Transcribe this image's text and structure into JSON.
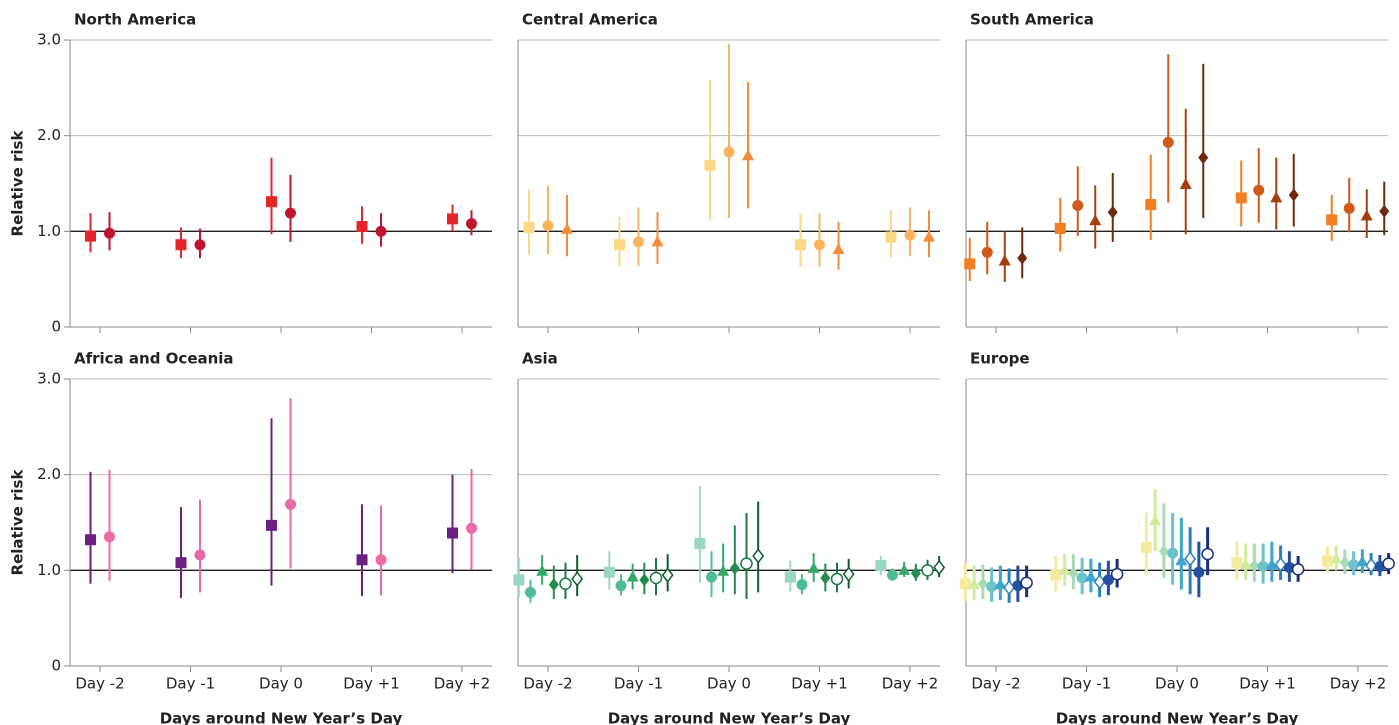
{
  "chart_data": [
    {
      "type": "errorpoint",
      "title": "North America",
      "ylabel": "Relative risk",
      "categories": [
        "Day -2",
        "Day -1",
        "Day 0",
        "Day +1",
        "Day +2"
      ],
      "xtick_labels": false,
      "ytick_labels": true,
      "ylim": [
        0,
        3
      ],
      "yticks": [
        0,
        {
          "value": 1,
          "label": "1.0"
        },
        {
          "value": 2,
          "label": "2.0"
        },
        {
          "value": 3,
          "label": "3.0"
        }
      ],
      "grid": true,
      "reference_line": 1,
      "series": [
        {
          "color": "#e4252b",
          "marker": "square",
          "values": [
            0.95,
            0.86,
            1.31,
            1.05,
            1.13
          ],
          "lower": [
            0.78,
            0.72,
            0.97,
            0.87,
            1.0
          ],
          "upper": [
            1.19,
            1.04,
            1.77,
            1.26,
            1.28
          ]
        },
        {
          "color": "#bf1530",
          "marker": "circle",
          "values": [
            0.98,
            0.86,
            1.19,
            1.0,
            1.08
          ],
          "lower": [
            0.8,
            0.72,
            0.89,
            0.84,
            0.96
          ],
          "upper": [
            1.2,
            1.03,
            1.59,
            1.19,
            1.22
          ]
        }
      ]
    },
    {
      "type": "errorpoint",
      "title": "Central America",
      "categories": [
        "Day -2",
        "Day -1",
        "Day 0",
        "Day +1",
        "Day +2"
      ],
      "xtick_labels": false,
      "ytick_labels": false,
      "ylim": [
        0,
        3
      ],
      "yticks": [
        0,
        {
          "value": 1,
          "label": "1.0"
        },
        {
          "value": 2,
          "label": "2.0"
        },
        {
          "value": 3,
          "label": "3.0"
        }
      ],
      "grid": true,
      "reference_line": 1,
      "series": [
        {
          "color": "#fdd886",
          "marker": "square",
          "values": [
            1.04,
            0.86,
            1.69,
            0.86,
            0.94
          ],
          "lower": [
            0.75,
            0.64,
            1.12,
            0.63,
            0.73
          ],
          "upper": [
            1.44,
            1.15,
            2.58,
            1.18,
            1.22
          ]
        },
        {
          "color": "#fbb45e",
          "marker": "circle",
          "values": [
            1.06,
            0.89,
            1.83,
            0.86,
            0.96
          ],
          "lower": [
            0.76,
            0.64,
            1.14,
            0.63,
            0.74
          ],
          "upper": [
            1.48,
            1.25,
            2.96,
            1.19,
            1.25
          ]
        },
        {
          "color": "#f38d3b",
          "marker": "triangle",
          "values": [
            1.02,
            0.89,
            1.79,
            0.81,
            0.94
          ],
          "lower": [
            0.74,
            0.66,
            1.24,
            0.6,
            0.73
          ],
          "upper": [
            1.38,
            1.2,
            2.56,
            1.1,
            1.22
          ]
        }
      ]
    },
    {
      "type": "errorpoint",
      "title": "South America",
      "categories": [
        "Day -2",
        "Day -1",
        "Day 0",
        "Day +1",
        "Day +2"
      ],
      "xtick_labels": false,
      "ytick_labels": false,
      "ylim": [
        0,
        3
      ],
      "yticks": [
        0,
        {
          "value": 1,
          "label": "1.0"
        },
        {
          "value": 2,
          "label": "2.0"
        },
        {
          "value": 3,
          "label": "3.0"
        }
      ],
      "grid": true,
      "reference_line": 1,
      "series": [
        {
          "color": "#f07f24",
          "marker": "square",
          "values": [
            0.66,
            1.03,
            1.28,
            1.35,
            1.12
          ],
          "lower": [
            0.48,
            0.79,
            0.91,
            1.05,
            0.9
          ],
          "upper": [
            0.93,
            1.35,
            1.8,
            1.74,
            1.38
          ]
        },
        {
          "color": "#cf5a19",
          "marker": "circle",
          "values": [
            0.78,
            1.27,
            1.93,
            1.43,
            1.24
          ],
          "lower": [
            0.55,
            0.95,
            1.3,
            1.09,
            0.99
          ],
          "upper": [
            1.1,
            1.68,
            2.85,
            1.87,
            1.56
          ]
        },
        {
          "color": "#a4400f",
          "marker": "triangle",
          "values": [
            0.69,
            1.11,
            1.49,
            1.35,
            1.16
          ],
          "lower": [
            0.47,
            0.82,
            0.97,
            1.02,
            0.93
          ],
          "upper": [
            1.0,
            1.48,
            2.28,
            1.77,
            1.44
          ]
        },
        {
          "color": "#6e2a0c",
          "marker": "diamond",
          "values": [
            0.72,
            1.2,
            1.77,
            1.38,
            1.21
          ],
          "lower": [
            0.51,
            0.89,
            1.14,
            1.05,
            0.96
          ],
          "upper": [
            1.04,
            1.61,
            2.75,
            1.81,
            1.52
          ]
        }
      ]
    },
    {
      "type": "errorpoint",
      "title": "Africa and Oceania",
      "ylabel": "Relative risk",
      "xlabel": "Days around New Year’s Day",
      "categories": [
        "Day -2",
        "Day -1",
        "Day 0",
        "Day +1",
        "Day +2"
      ],
      "xtick_labels": true,
      "ytick_labels": true,
      "ylim": [
        0,
        3
      ],
      "yticks": [
        0,
        {
          "value": 1,
          "label": "1.0"
        },
        {
          "value": 2,
          "label": "2.0"
        },
        {
          "value": 3,
          "label": "3.0"
        }
      ],
      "grid": true,
      "reference_line": 1,
      "series": [
        {
          "color": "#6a2180",
          "marker": "square",
          "values": [
            1.32,
            1.08,
            1.47,
            1.11,
            1.39
          ],
          "lower": [
            0.86,
            0.71,
            0.84,
            0.73,
            0.97
          ],
          "upper": [
            2.03,
            1.66,
            2.59,
            1.69,
            2.0
          ]
        },
        {
          "color": "#e86aa6",
          "marker": "circle",
          "values": [
            1.35,
            1.16,
            1.69,
            1.11,
            1.44
          ],
          "lower": [
            0.89,
            0.77,
            1.02,
            0.74,
            1.01
          ],
          "upper": [
            2.05,
            1.74,
            2.8,
            1.68,
            2.06
          ]
        }
      ]
    },
    {
      "type": "errorpoint",
      "title": "Asia",
      "xlabel": "Days around New Year’s Day",
      "categories": [
        "Day -2",
        "Day -1",
        "Day 0",
        "Day +1",
        "Day +2"
      ],
      "xtick_labels": true,
      "ytick_labels": false,
      "ylim": [
        0,
        3
      ],
      "yticks": [
        0,
        {
          "value": 1,
          "label": "1.0"
        },
        {
          "value": 2,
          "label": "2.0"
        },
        {
          "value": 3,
          "label": "3.0"
        }
      ],
      "grid": true,
      "reference_line": 1,
      "series": [
        {
          "color": "#9ad6c6",
          "marker": "square",
          "values": [
            0.9,
            0.98,
            1.28,
            0.93,
            1.05
          ],
          "lower": [
            0.72,
            0.8,
            0.87,
            0.78,
            0.95
          ],
          "upper": [
            1.13,
            1.2,
            1.88,
            1.1,
            1.15
          ]
        },
        {
          "color": "#4dbd93",
          "marker": "circle",
          "values": [
            0.77,
            0.84,
            0.93,
            0.85,
            0.95
          ],
          "lower": [
            0.66,
            0.74,
            0.72,
            0.75,
            0.89
          ],
          "upper": [
            0.9,
            0.96,
            1.2,
            0.96,
            1.02
          ]
        },
        {
          "color": "#36a86a",
          "marker": "triangle",
          "values": [
            0.99,
            0.93,
            0.99,
            1.02,
            1.0
          ],
          "lower": [
            0.85,
            0.8,
            0.77,
            0.88,
            0.93
          ],
          "upper": [
            1.16,
            1.07,
            1.28,
            1.18,
            1.09
          ]
        },
        {
          "color": "#238b4e",
          "marker": "diamond",
          "values": [
            0.85,
            0.9,
            1.02,
            0.92,
            0.97
          ],
          "lower": [
            0.7,
            0.75,
            0.75,
            0.78,
            0.89
          ],
          "upper": [
            1.05,
            1.08,
            1.47,
            1.07,
            1.07
          ]
        },
        {
          "color": "#1e7a43",
          "marker": "open-circle",
          "values": [
            0.86,
            0.92,
            1.07,
            0.91,
            1.0
          ],
          "lower": [
            0.7,
            0.74,
            0.7,
            0.77,
            0.9
          ],
          "upper": [
            1.08,
            1.13,
            1.6,
            1.08,
            1.11
          ]
        },
        {
          "color": "#0f5c30",
          "marker": "open-diamond",
          "values": [
            0.91,
            0.95,
            1.15,
            0.96,
            1.03
          ],
          "lower": [
            0.73,
            0.78,
            0.77,
            0.81,
            0.93
          ],
          "upper": [
            1.16,
            1.17,
            1.72,
            1.12,
            1.15
          ]
        }
      ]
    },
    {
      "type": "errorpoint",
      "title": "Europe",
      "xlabel": "Days around New Year’s Day",
      "categories": [
        "Day -2",
        "Day -1",
        "Day 0",
        "Day +1",
        "Day +2"
      ],
      "xtick_labels": true,
      "ytick_labels": false,
      "ylim": [
        0,
        3
      ],
      "yticks": [
        0,
        {
          "value": 1,
          "label": "1.0"
        },
        {
          "value": 2,
          "label": "2.0"
        },
        {
          "value": 3,
          "label": "3.0"
        }
      ],
      "grid": true,
      "reference_line": 1,
      "series": [
        {
          "color": "#f4eba0",
          "marker": "square",
          "values": [
            0.86,
            0.95,
            1.24,
            1.08,
            1.1
          ],
          "lower": [
            0.68,
            0.78,
            0.95,
            0.9,
            0.98
          ],
          "upper": [
            1.08,
            1.15,
            1.6,
            1.3,
            1.25
          ]
        },
        {
          "color": "#d2ec9f",
          "marker": "triangle",
          "values": [
            0.85,
            1.0,
            1.52,
            1.06,
            1.12
          ],
          "lower": [
            0.69,
            0.84,
            1.2,
            0.9,
            1.0
          ],
          "upper": [
            1.05,
            1.17,
            1.85,
            1.28,
            1.26
          ]
        },
        {
          "color": "#a6dbb6",
          "marker": "diamond",
          "values": [
            0.86,
            0.97,
            1.2,
            1.05,
            1.08
          ],
          "lower": [
            0.7,
            0.8,
            0.92,
            0.88,
            0.96
          ],
          "upper": [
            1.06,
            1.17,
            1.7,
            1.28,
            1.22
          ]
        },
        {
          "color": "#6cc3c9",
          "marker": "circle",
          "values": [
            0.83,
            0.92,
            1.18,
            1.04,
            1.06
          ],
          "lower": [
            0.67,
            0.75,
            0.85,
            0.86,
            0.95
          ],
          "upper": [
            1.03,
            1.13,
            1.6,
            1.28,
            1.2
          ]
        },
        {
          "color": "#3fa5cf",
          "marker": "triangle",
          "values": [
            0.85,
            0.93,
            1.1,
            1.06,
            1.09
          ],
          "lower": [
            0.69,
            0.77,
            0.8,
            0.88,
            0.97
          ],
          "upper": [
            1.05,
            1.12,
            1.55,
            1.3,
            1.22
          ]
        },
        {
          "color": "#2a7fbf",
          "marker": "open-diamond",
          "values": [
            0.82,
            0.88,
            1.12,
            1.06,
            1.05
          ],
          "lower": [
            0.66,
            0.72,
            0.75,
            0.9,
            0.95
          ],
          "upper": [
            1.02,
            1.08,
            1.45,
            1.26,
            1.18
          ]
        },
        {
          "color": "#25509f",
          "marker": "circle",
          "values": [
            0.84,
            0.9,
            0.98,
            1.03,
            1.04
          ],
          "lower": [
            0.67,
            0.74,
            0.72,
            0.88,
            0.94
          ],
          "upper": [
            1.05,
            1.1,
            1.3,
            1.2,
            1.16
          ]
        },
        {
          "color": "#1b2f80",
          "marker": "open-circle",
          "values": [
            0.87,
            0.96,
            1.17,
            1.01,
            1.07
          ],
          "lower": [
            0.72,
            0.82,
            0.95,
            0.88,
            0.96
          ],
          "upper": [
            1.05,
            1.12,
            1.45,
            1.15,
            1.18
          ]
        }
      ]
    }
  ]
}
